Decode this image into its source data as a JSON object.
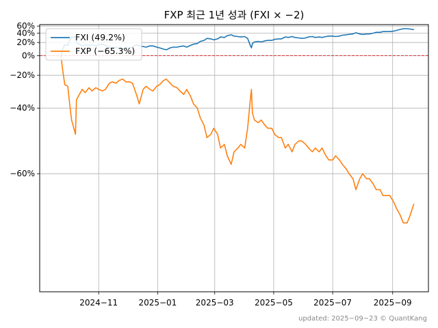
{
  "chart_data": {
    "type": "line",
    "title": "FXP 최근 1년 성과 (FXI × −2)",
    "xlabel": "",
    "ylabel": "",
    "x_start": "2024-09-23",
    "x_end": "2025-09-23",
    "xlim": [
      "2024-09-01",
      "2025-10-08"
    ],
    "ylim": [
      -75,
      65
    ],
    "y_scale": "reciprocal-style (y = 100/(100+r) spacing)",
    "yticks": [
      60,
      40,
      20,
      0,
      -20,
      -40,
      -60
    ],
    "ytick_labels": [
      "60%",
      "40%",
      "20%",
      "0%",
      "−20%",
      "−40%",
      "−60%"
    ],
    "xticks": [
      "2024-11-01",
      "2025-01-01",
      "2025-03-01",
      "2025-05-01",
      "2025-07-01",
      "2025-09-01"
    ],
    "xtick_labels": [
      "2024−11",
      "2025−01",
      "2025−03",
      "2025−05",
      "2025−07",
      "2025−09"
    ],
    "grid": true,
    "legend_position": "top-left",
    "reference_line": {
      "y": 0,
      "color": "#d62728",
      "style": "dashed"
    },
    "series": [
      {
        "name": "FXI (49.2%)",
        "color": "#1f77b4",
        "points": [
          [
            "2024-09-23",
            0
          ],
          [
            "2024-09-25",
            10
          ],
          [
            "2024-09-27",
            16
          ],
          [
            "2024-09-30",
            15
          ],
          [
            "2024-10-02",
            24
          ],
          [
            "2024-10-04",
            30
          ],
          [
            "2024-10-08",
            32
          ],
          [
            "2024-10-09",
            20
          ],
          [
            "2024-10-11",
            18
          ],
          [
            "2024-10-15",
            14
          ],
          [
            "2024-10-18",
            16
          ],
          [
            "2024-10-22",
            15
          ],
          [
            "2024-10-25",
            16
          ],
          [
            "2024-10-29",
            14
          ],
          [
            "2024-11-01",
            16
          ],
          [
            "2024-11-05",
            17
          ],
          [
            "2024-11-08",
            15
          ],
          [
            "2024-11-12",
            12
          ],
          [
            "2024-11-15",
            11
          ],
          [
            "2024-11-19",
            12
          ],
          [
            "2024-11-22",
            10
          ],
          [
            "2024-11-26",
            9
          ],
          [
            "2024-11-29",
            11
          ],
          [
            "2024-12-03",
            11
          ],
          [
            "2024-12-06",
            12
          ],
          [
            "2024-12-10",
            16
          ],
          [
            "2024-12-13",
            14
          ],
          [
            "2024-12-17",
            13
          ],
          [
            "2024-12-20",
            12
          ],
          [
            "2024-12-24",
            14
          ],
          [
            "2024-12-27",
            14
          ],
          [
            "2024-12-31",
            12
          ],
          [
            "2025-01-03",
            11
          ],
          [
            "2025-01-07",
            9
          ],
          [
            "2025-01-10",
            8
          ],
          [
            "2025-01-14",
            11
          ],
          [
            "2025-01-17",
            12
          ],
          [
            "2025-01-21",
            12
          ],
          [
            "2025-01-24",
            13
          ],
          [
            "2025-01-28",
            14
          ],
          [
            "2025-01-31",
            12
          ],
          [
            "2025-02-04",
            15
          ],
          [
            "2025-02-07",
            17
          ],
          [
            "2025-02-11",
            18
          ],
          [
            "2025-02-14",
            22
          ],
          [
            "2025-02-18",
            24
          ],
          [
            "2025-02-21",
            28
          ],
          [
            "2025-02-25",
            27
          ],
          [
            "2025-02-28",
            25
          ],
          [
            "2025-03-04",
            27
          ],
          [
            "2025-03-07",
            31
          ],
          [
            "2025-03-11",
            30
          ],
          [
            "2025-03-14",
            34
          ],
          [
            "2025-03-18",
            36
          ],
          [
            "2025-03-21",
            33
          ],
          [
            "2025-03-25",
            32
          ],
          [
            "2025-03-28",
            31
          ],
          [
            "2025-04-01",
            32
          ],
          [
            "2025-04-04",
            28
          ],
          [
            "2025-04-07",
            14
          ],
          [
            "2025-04-08",
            11
          ],
          [
            "2025-04-09",
            18
          ],
          [
            "2025-04-11",
            21
          ],
          [
            "2025-04-15",
            22
          ],
          [
            "2025-04-18",
            21
          ],
          [
            "2025-04-22",
            23
          ],
          [
            "2025-04-25",
            24
          ],
          [
            "2025-04-29",
            24
          ],
          [
            "2025-05-02",
            26
          ],
          [
            "2025-05-06",
            27
          ],
          [
            "2025-05-09",
            27
          ],
          [
            "2025-05-13",
            31
          ],
          [
            "2025-05-16",
            30
          ],
          [
            "2025-05-20",
            32
          ],
          [
            "2025-05-23",
            30
          ],
          [
            "2025-05-27",
            29
          ],
          [
            "2025-05-30",
            28
          ],
          [
            "2025-06-03",
            29
          ],
          [
            "2025-06-06",
            31
          ],
          [
            "2025-06-10",
            32
          ],
          [
            "2025-06-13",
            30
          ],
          [
            "2025-06-17",
            31
          ],
          [
            "2025-06-20",
            30
          ],
          [
            "2025-06-24",
            32
          ],
          [
            "2025-06-27",
            33
          ],
          [
            "2025-07-01",
            33
          ],
          [
            "2025-07-04",
            32
          ],
          [
            "2025-07-08",
            33
          ],
          [
            "2025-07-11",
            35
          ],
          [
            "2025-07-15",
            36
          ],
          [
            "2025-07-18",
            37
          ],
          [
            "2025-07-22",
            38
          ],
          [
            "2025-07-25",
            41
          ],
          [
            "2025-07-29",
            38
          ],
          [
            "2025-08-01",
            37
          ],
          [
            "2025-08-05",
            38
          ],
          [
            "2025-08-08",
            38
          ],
          [
            "2025-08-12",
            40
          ],
          [
            "2025-08-15",
            42
          ],
          [
            "2025-08-19",
            42
          ],
          [
            "2025-08-22",
            44
          ],
          [
            "2025-08-26",
            44
          ],
          [
            "2025-08-29",
            44
          ],
          [
            "2025-09-02",
            45
          ],
          [
            "2025-09-05",
            47
          ],
          [
            "2025-09-09",
            50
          ],
          [
            "2025-09-12",
            52
          ],
          [
            "2025-09-16",
            52
          ],
          [
            "2025-09-19",
            51
          ],
          [
            "2025-09-23",
            49.2
          ]
        ]
      },
      {
        "name": "FXP (−65.3%)",
        "color": "#ff7f0e",
        "points": [
          [
            "2024-09-23",
            0
          ],
          [
            "2024-09-25",
            -17
          ],
          [
            "2024-09-27",
            -27
          ],
          [
            "2024-09-30",
            -28
          ],
          [
            "2024-10-02",
            -38
          ],
          [
            "2024-10-04",
            -45
          ],
          [
            "2024-10-08",
            -50
          ],
          [
            "2024-10-09",
            -36
          ],
          [
            "2024-10-11",
            -34
          ],
          [
            "2024-10-15",
            -30
          ],
          [
            "2024-10-18",
            -32
          ],
          [
            "2024-10-22",
            -29
          ],
          [
            "2024-10-25",
            -31
          ],
          [
            "2024-10-29",
            -29
          ],
          [
            "2024-11-01",
            -30
          ],
          [
            "2024-11-05",
            -31
          ],
          [
            "2024-11-08",
            -30
          ],
          [
            "2024-11-12",
            -26
          ],
          [
            "2024-11-15",
            -25
          ],
          [
            "2024-11-19",
            -26
          ],
          [
            "2024-11-22",
            -24
          ],
          [
            "2024-11-26",
            -23
          ],
          [
            "2024-11-29",
            -25
          ],
          [
            "2024-12-03",
            -25
          ],
          [
            "2024-12-06",
            -26
          ],
          [
            "2024-12-10",
            -33
          ],
          [
            "2024-12-13",
            -38
          ],
          [
            "2024-12-17",
            -30
          ],
          [
            "2024-12-20",
            -28
          ],
          [
            "2024-12-24",
            -30
          ],
          [
            "2024-12-27",
            -31
          ],
          [
            "2024-12-31",
            -28
          ],
          [
            "2025-01-03",
            -27
          ],
          [
            "2025-01-07",
            -24
          ],
          [
            "2025-01-10",
            -23
          ],
          [
            "2025-01-14",
            -26
          ],
          [
            "2025-01-17",
            -28
          ],
          [
            "2025-01-21",
            -29
          ],
          [
            "2025-01-24",
            -31
          ],
          [
            "2025-01-28",
            -33
          ],
          [
            "2025-01-31",
            -30
          ],
          [
            "2025-02-04",
            -34
          ],
          [
            "2025-02-07",
            -38
          ],
          [
            "2025-02-11",
            -40
          ],
          [
            "2025-02-14",
            -44
          ],
          [
            "2025-02-18",
            -47
          ],
          [
            "2025-02-21",
            -51
          ],
          [
            "2025-02-25",
            -50
          ],
          [
            "2025-02-28",
            -48
          ],
          [
            "2025-03-04",
            -50
          ],
          [
            "2025-03-07",
            -54
          ],
          [
            "2025-03-11",
            -53
          ],
          [
            "2025-03-14",
            -56
          ],
          [
            "2025-03-18",
            -58
          ],
          [
            "2025-03-21",
            -55
          ],
          [
            "2025-03-25",
            -54
          ],
          [
            "2025-03-28",
            -53
          ],
          [
            "2025-04-01",
            -54
          ],
          [
            "2025-04-04",
            -48
          ],
          [
            "2025-04-07",
            -35
          ],
          [
            "2025-04-08",
            -30
          ],
          [
            "2025-04-09",
            -42
          ],
          [
            "2025-04-11",
            -45
          ],
          [
            "2025-04-15",
            -46
          ],
          [
            "2025-04-18",
            -45
          ],
          [
            "2025-04-22",
            -47
          ],
          [
            "2025-04-25",
            -48
          ],
          [
            "2025-04-29",
            -48
          ],
          [
            "2025-05-02",
            -50
          ],
          [
            "2025-05-06",
            -51
          ],
          [
            "2025-05-09",
            -51
          ],
          [
            "2025-05-13",
            -54
          ],
          [
            "2025-05-16",
            -53
          ],
          [
            "2025-05-20",
            -55
          ],
          [
            "2025-05-23",
            -53
          ],
          [
            "2025-05-27",
            -52
          ],
          [
            "2025-05-30",
            -52
          ],
          [
            "2025-06-03",
            -53
          ],
          [
            "2025-06-06",
            -54
          ],
          [
            "2025-06-10",
            -55
          ],
          [
            "2025-06-13",
            -54
          ],
          [
            "2025-06-17",
            -55
          ],
          [
            "2025-06-20",
            -54
          ],
          [
            "2025-06-24",
            -56
          ],
          [
            "2025-06-27",
            -57
          ],
          [
            "2025-07-01",
            -57
          ],
          [
            "2025-07-04",
            -56
          ],
          [
            "2025-07-08",
            -57
          ],
          [
            "2025-07-11",
            -58
          ],
          [
            "2025-07-15",
            -59
          ],
          [
            "2025-07-18",
            -60
          ],
          [
            "2025-07-22",
            -61
          ],
          [
            "2025-07-25",
            -63
          ],
          [
            "2025-07-29",
            -61
          ],
          [
            "2025-08-01",
            -60
          ],
          [
            "2025-08-05",
            -61
          ],
          [
            "2025-08-08",
            -61
          ],
          [
            "2025-08-12",
            -62
          ],
          [
            "2025-08-15",
            -63
          ],
          [
            "2025-08-19",
            -63
          ],
          [
            "2025-08-22",
            -64
          ],
          [
            "2025-08-26",
            -64
          ],
          [
            "2025-08-29",
            -64
          ],
          [
            "2025-09-02",
            -65
          ],
          [
            "2025-09-05",
            -66
          ],
          [
            "2025-09-09",
            -67
          ],
          [
            "2025-09-12",
            -68
          ],
          [
            "2025-09-16",
            -68
          ],
          [
            "2025-09-19",
            -67
          ],
          [
            "2025-09-23",
            -65.3
          ]
        ]
      }
    ],
    "footer_text": "updated: 2025−09−23 © QuantKang"
  }
}
